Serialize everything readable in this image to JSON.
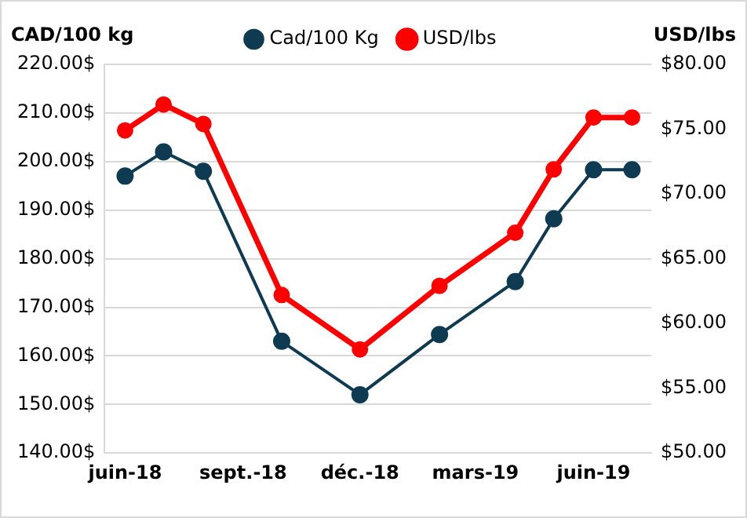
{
  "chart_data": {
    "type": "line",
    "ylabel": "CAD/100 kg",
    "y2label": "USD/lbs",
    "x": [
      "2018-06",
      "2018-07",
      "2018-08",
      "2018-10",
      "2018-12",
      "2019-02",
      "2019-04",
      "2019-05",
      "2019-06",
      "2019-07"
    ],
    "series": [
      {
        "name": "Cad/100 Kg",
        "color": "#0e3a52",
        "values": [
          197,
          202,
          198,
          163,
          152,
          164.4,
          175.3,
          188.2,
          198.3,
          198.3
        ]
      },
      {
        "name": "USD/lbs",
        "color": "#ff0000",
        "axis": "y2",
        "values": [
          74.9,
          76.9,
          75.4,
          62.2,
          58,
          62.9,
          67,
          71.9,
          75.9,
          75.9
        ]
      }
    ],
    "xlim": [
      "2018-05-16",
      "2019-07-16"
    ],
    "xticks": [
      {
        "value": "2018-06",
        "label": "juin-18"
      },
      {
        "value": "2018-09",
        "label": "sept.-18"
      },
      {
        "value": "2018-12",
        "label": "déc.-18"
      },
      {
        "value": "2019-03",
        "label": "mars-19"
      },
      {
        "value": "2019-06",
        "label": "juin-19"
      }
    ],
    "ylim": [
      140,
      220
    ],
    "yticks": [
      {
        "value": 140,
        "label": "140.00$"
      },
      {
        "value": 150,
        "label": "150.00$"
      },
      {
        "value": 160,
        "label": "160.00$"
      },
      {
        "value": 170,
        "label": "170.00$"
      },
      {
        "value": 180,
        "label": "180.00$"
      },
      {
        "value": 190,
        "label": "190.00$"
      },
      {
        "value": 200,
        "label": "200.00$"
      },
      {
        "value": 210,
        "label": "210.00$"
      },
      {
        "value": 220,
        "label": "220.00$"
      }
    ],
    "y2lim": [
      50,
      80
    ],
    "y2ticks": [
      {
        "value": 50,
        "label": "$50.00"
      },
      {
        "value": 55,
        "label": "$55.00"
      },
      {
        "value": 60,
        "label": "$60.00"
      },
      {
        "value": 65,
        "label": "$65.00"
      },
      {
        "value": 70,
        "label": "$70.00"
      },
      {
        "value": 75,
        "label": "$75.00"
      },
      {
        "value": 80,
        "label": "$80.00"
      }
    ],
    "grid": "y",
    "legend": "top",
    "marker": "circle",
    "line_style": "solid"
  }
}
